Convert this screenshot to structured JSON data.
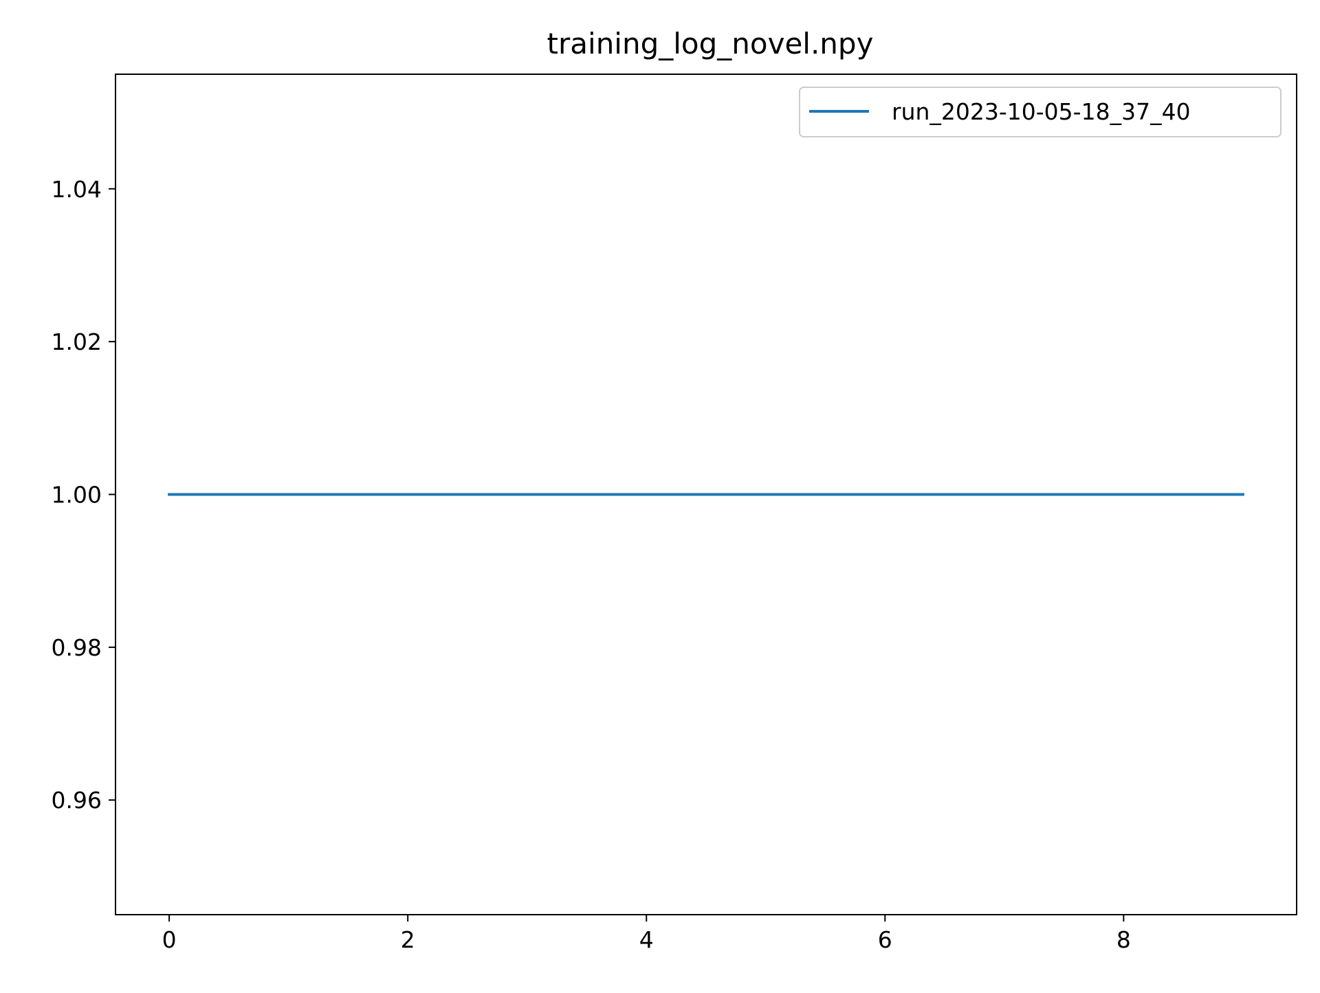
{
  "chart_data": {
    "type": "line",
    "title": "training_log_novel.npy",
    "xlabel": "",
    "ylabel": "",
    "x": [
      0,
      1,
      2,
      3,
      4,
      5,
      6,
      7,
      8,
      9
    ],
    "series": [
      {
        "name": "run_2023-10-05-18_37_40",
        "values": [
          1.0,
          1.0,
          1.0,
          1.0,
          1.0,
          1.0,
          1.0,
          1.0,
          1.0,
          1.0
        ],
        "color": "#1f77b4"
      }
    ],
    "xlim": [
      -0.45,
      9.45
    ],
    "ylim": [
      0.945,
      1.055
    ],
    "xticks": [
      0,
      2,
      4,
      6,
      8
    ],
    "xtick_labels": [
      "0",
      "2",
      "4",
      "6",
      "8"
    ],
    "yticks": [
      0.96,
      0.98,
      1.0,
      1.02,
      1.04
    ],
    "ytick_labels": [
      "0.96",
      "0.98",
      "1.00",
      "1.02",
      "1.04"
    ],
    "grid": false,
    "legend_position": "top-right"
  }
}
